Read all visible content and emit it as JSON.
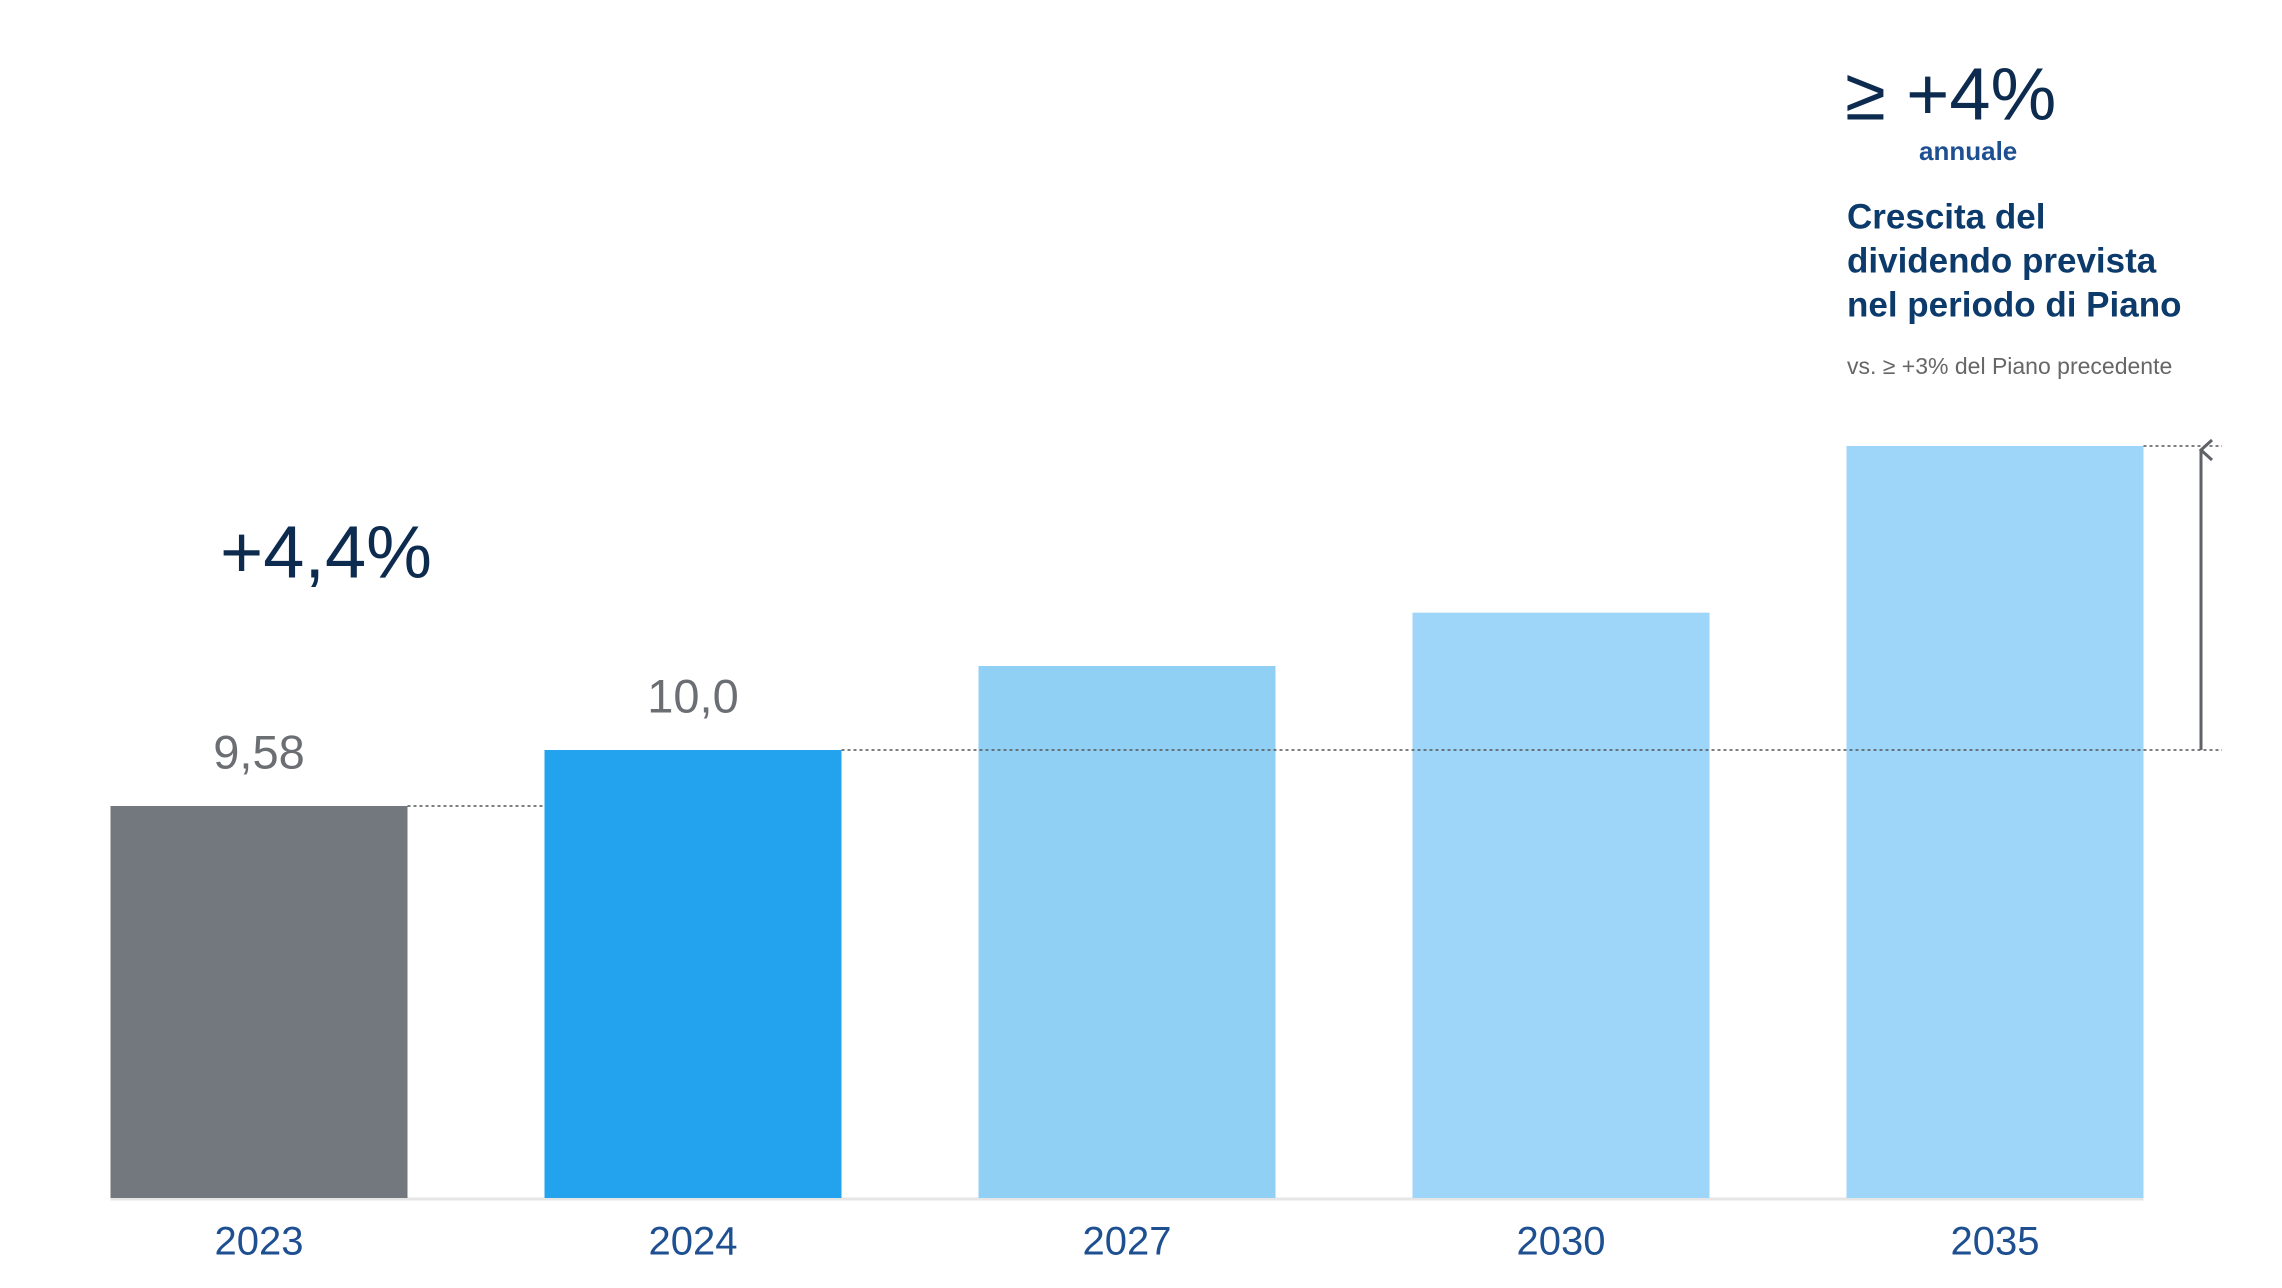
{
  "chart_data": {
    "type": "bar",
    "categories": [
      "2023",
      "2024",
      "2027",
      "2030",
      "2035"
    ],
    "values": [
      9.58,
      10.0,
      10.63,
      11.03,
      12.28
    ],
    "value_labels": [
      "9,58",
      "10,0",
      null,
      null,
      null
    ],
    "colors": [
      "#72787e",
      "#23a3ee",
      "#91d0f5",
      "#9dd6f8",
      "#9dd6f8"
    ],
    "ylim": [
      6.64,
      12.28
    ],
    "annotations": {
      "growth_past": "+4,4%",
      "growth_target": "≥ +4%",
      "growth_target_unit": "annuale",
      "headline": [
        "Crescita del",
        "dividendo prevista",
        "nel periodo di Piano"
      ],
      "note": "vs. ≥ +3% del Piano precedente"
    }
  }
}
